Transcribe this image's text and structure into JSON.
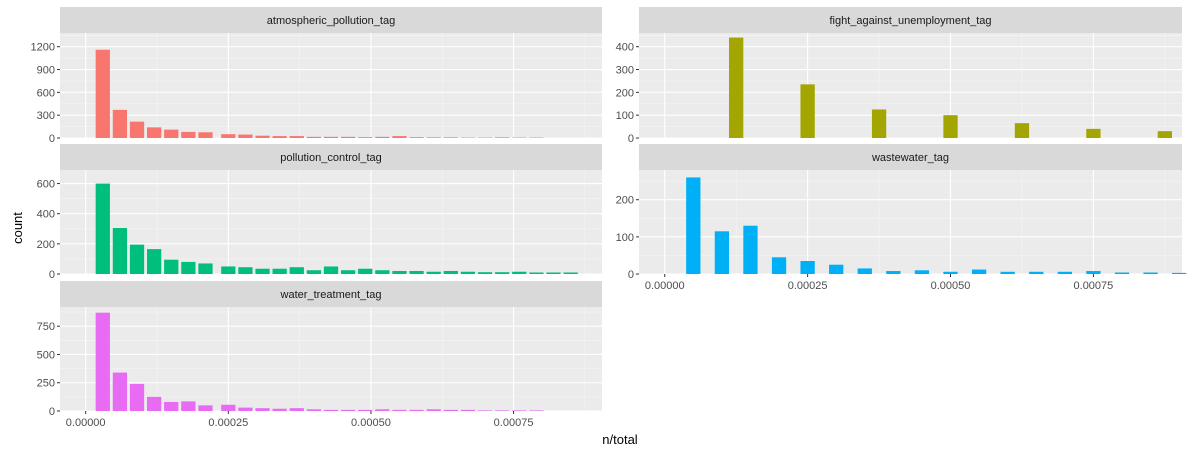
{
  "chart_data": {
    "type": "bar",
    "xlabel": "n/total",
    "ylabel": "count",
    "xlim": [
      -4.5e-05,
      0.000905
    ],
    "x_ticks": [
      "0.00000",
      "0.00025",
      "0.00050",
      "0.00075"
    ],
    "x_tick_values": [
      0,
      0.00025,
      0.0005,
      0.00075
    ],
    "bin_width": 2.5e-05,
    "panels": [
      {
        "name": "atmospheric_pollution_tag",
        "color": "#F8766D",
        "ylim": [
          0,
          1380
        ],
        "y_ticks": [
          "0",
          "300",
          "600",
          "900",
          "1200"
        ],
        "y_tick_values": [
          0,
          300,
          600,
          900,
          1200
        ],
        "x": [
          3e-05,
          6e-05,
          9e-05,
          0.00012,
          0.00015,
          0.00018,
          0.00021,
          0.00025,
          0.00028,
          0.00031,
          0.00034,
          0.00037,
          0.0004,
          0.00043,
          0.00046,
          0.00049,
          0.00052,
          0.00055,
          0.00058,
          0.00061,
          0.00064,
          0.00067,
          0.0007,
          0.00073,
          0.00076,
          0.00079
        ],
        "values": [
          1160,
          370,
          215,
          140,
          110,
          80,
          75,
          50,
          45,
          30,
          25,
          25,
          15,
          15,
          15,
          10,
          15,
          25,
          10,
          8,
          8,
          5,
          5,
          8,
          5,
          5
        ]
      },
      {
        "name": "fight_against_unemployment_tag",
        "color": "#A3A500",
        "ylim": [
          0,
          460
        ],
        "y_ticks": [
          "0",
          "100",
          "200",
          "300",
          "400"
        ],
        "y_tick_values": [
          0,
          100,
          200,
          300,
          400
        ],
        "x": [
          0.000125,
          0.00025,
          0.000375,
          0.0005,
          0.000625,
          0.00075,
          0.000875
        ],
        "values": [
          440,
          235,
          125,
          100,
          65,
          40,
          30
        ]
      },
      {
        "name": "pollution_control_tag",
        "color": "#00BF7D",
        "ylim": [
          0,
          690
        ],
        "y_ticks": [
          "0",
          "200",
          "400",
          "600"
        ],
        "y_tick_values": [
          0,
          200,
          400,
          600
        ],
        "x": [
          3e-05,
          6e-05,
          9e-05,
          0.00012,
          0.00015,
          0.00018,
          0.00021,
          0.00025,
          0.00028,
          0.00031,
          0.00034,
          0.00037,
          0.0004,
          0.00043,
          0.00046,
          0.00049,
          0.00052,
          0.00055,
          0.00058,
          0.00061,
          0.00064,
          0.00067,
          0.0007,
          0.00073,
          0.00076,
          0.00079,
          0.00082,
          0.00085
        ],
        "values": [
          600,
          305,
          195,
          165,
          95,
          80,
          70,
          50,
          45,
          35,
          35,
          45,
          25,
          50,
          25,
          35,
          25,
          20,
          20,
          15,
          20,
          15,
          12,
          12,
          15,
          10,
          10,
          10
        ]
      },
      {
        "name": "wastewater_tag",
        "color": "#00B0F6",
        "ylim": [
          0,
          280
        ],
        "y_ticks": [
          "0",
          "100",
          "200"
        ],
        "y_tick_values": [
          0,
          100,
          200
        ],
        "x": [
          5e-05,
          0.0001,
          0.00015,
          0.0002,
          0.00025,
          0.0003,
          0.00035,
          0.0004,
          0.00045,
          0.0005,
          0.00055,
          0.0006,
          0.00065,
          0.0007,
          0.00075,
          0.0008,
          0.00085,
          0.0009
        ],
        "values": [
          260,
          115,
          130,
          45,
          35,
          25,
          15,
          8,
          10,
          6,
          12,
          6,
          6,
          6,
          8,
          4,
          4,
          3
        ]
      },
      {
        "name": "water_treatment_tag",
        "color": "#E76BF3",
        "ylim": [
          0,
          920
        ],
        "y_ticks": [
          "0",
          "250",
          "500",
          "750"
        ],
        "y_tick_values": [
          0,
          250,
          500,
          750
        ],
        "x": [
          3e-05,
          6e-05,
          9e-05,
          0.00012,
          0.00015,
          0.00018,
          0.00021,
          0.00025,
          0.00028,
          0.00031,
          0.00034,
          0.00037,
          0.0004,
          0.00043,
          0.00046,
          0.00049,
          0.00052,
          0.00055,
          0.00058,
          0.00061,
          0.00064,
          0.00067,
          0.0007,
          0.00073,
          0.00076,
          0.00079
        ],
        "values": [
          870,
          340,
          240,
          125,
          80,
          85,
          50,
          55,
          30,
          25,
          20,
          25,
          15,
          10,
          10,
          10,
          15,
          10,
          10,
          15,
          10,
          10,
          5,
          5,
          5,
          5
        ]
      }
    ]
  }
}
